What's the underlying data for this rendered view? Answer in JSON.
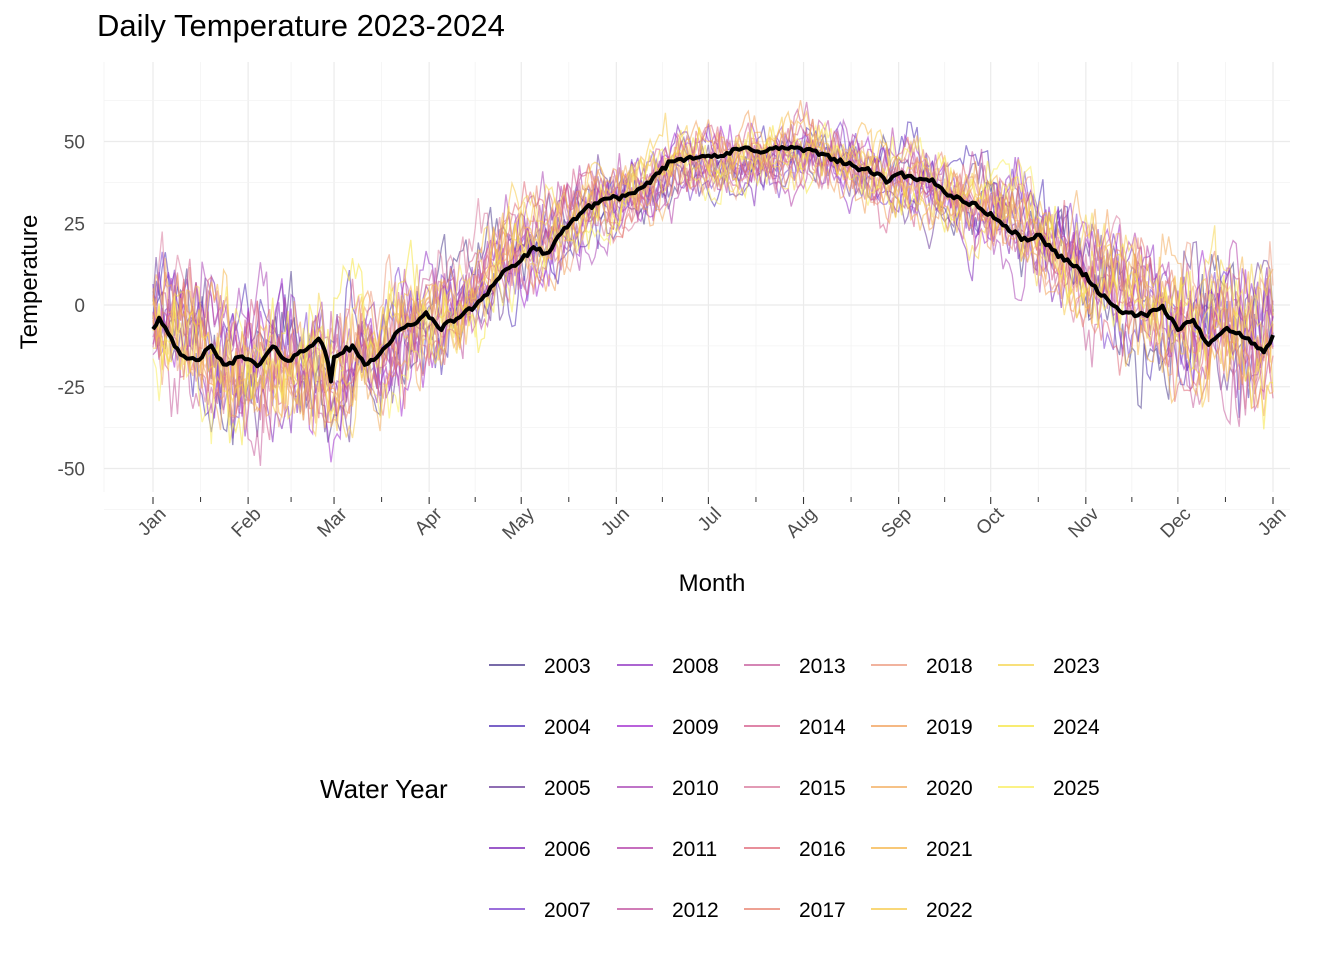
{
  "chart_data": {
    "type": "line",
    "title": "Daily Temperature 2023-2024",
    "xlabel": "Month",
    "ylabel": "Temperature",
    "x_ticks": [
      "Jan",
      "Feb",
      "Mar",
      "Apr",
      "May",
      "Jun",
      "Jul",
      "Aug",
      "Sep",
      "Oct",
      "Nov",
      "Dec",
      "Jan"
    ],
    "xlim_days": [
      1,
      366
    ],
    "y_ticks": [
      50,
      25,
      0,
      -25,
      -50
    ],
    "ylim": [
      -58,
      70
    ],
    "grid": true,
    "legend": {
      "title": "Water Year",
      "placement": "bottom",
      "entries": [
        "2003",
        "2004",
        "2005",
        "2006",
        "2007",
        "2008",
        "2009",
        "2010",
        "2011",
        "2012",
        "2013",
        "2014",
        "2015",
        "2016",
        "2017",
        "2018",
        "2019",
        "2020",
        "2021",
        "2022",
        "2023",
        "2024",
        "2025"
      ]
    },
    "colors": {
      "2003": "#4b3a8c",
      "2004": "#4f2fb5",
      "2005": "#6a3d9a",
      "2006": "#7b24b8",
      "2007": "#7a3fcf",
      "2008": "#9032c2",
      "2009": "#a12ccf",
      "2010": "#a946b5",
      "2011": "#b33ea8",
      "2012": "#c0509f",
      "2013": "#c75e9c",
      "2014": "#d45c8c",
      "2015": "#d87a9c",
      "2016": "#e06a78",
      "2017": "#e8826f",
      "2018": "#ec9a7e",
      "2019": "#f2a05a",
      "2020": "#f3ad5f",
      "2021": "#f6b64a",
      "2022": "#f7cb4c",
      "2023": "#f5d64f",
      "2024": "#f6e541",
      "2025": "#f9ee5d",
      "mean": "#000000"
    },
    "climatology_shape": {
      "description_points_day": [
        1,
        32,
        60,
        91,
        121,
        152,
        182,
        213,
        244,
        274,
        305,
        335,
        366
      ],
      "description_points_temp": [
        -5,
        -18,
        -17,
        -5,
        18,
        33,
        44,
        47,
        39,
        30,
        10,
        -5,
        -12
      ]
    },
    "mean_series": {
      "name": "",
      "x_day": [
        1,
        3,
        6,
        10,
        15,
        20,
        25,
        30,
        35,
        40,
        45,
        50,
        55,
        58,
        59,
        60,
        63,
        66,
        70,
        75,
        80,
        85,
        90,
        95,
        100,
        105,
        110,
        115,
        120,
        125,
        130,
        135,
        140,
        145,
        150,
        155,
        160,
        165,
        170,
        175,
        180,
        185,
        190,
        195,
        200,
        205,
        210,
        215,
        220,
        225,
        230,
        235,
        240,
        245,
        250,
        255,
        260,
        265,
        270,
        275,
        280,
        285,
        290,
        295,
        300,
        305,
        310,
        315,
        320,
        325,
        330,
        335,
        340,
        345,
        350,
        355,
        360,
        363,
        366
      ],
      "temps": [
        -7,
        -4,
        -8,
        -16,
        -17,
        -13,
        -19,
        -15,
        -19,
        -13,
        -17,
        -14,
        -10,
        -17,
        -24,
        -16,
        -14,
        -13,
        -18,
        -15,
        -9,
        -6,
        -3,
        -7,
        -4,
        -1,
        4,
        10,
        13,
        17,
        16,
        23,
        28,
        31,
        33,
        33,
        35,
        40,
        44,
        45,
        46,
        45,
        47,
        48,
        47,
        48,
        48,
        47,
        46,
        44,
        42,
        41,
        38,
        40,
        38,
        38,
        34,
        32,
        30,
        27,
        23,
        20,
        21,
        16,
        13,
        9,
        3,
        -1,
        -3,
        -3,
        -1,
        -7,
        -5,
        -12,
        -7,
        -9,
        -12,
        -14,
        -10
      ]
    },
    "year_series_note": "Each water year 2003-2025 plotted as a thin translucent daily line around the mean with noise amplitude ~15 in winter and ~7 in summer."
  }
}
